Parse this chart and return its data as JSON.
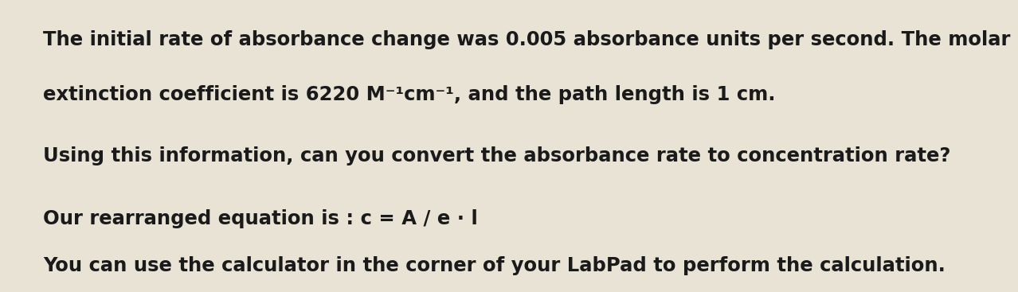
{
  "background_color": "#e8e3d5",
  "sidebar_color": "#5a5a5a",
  "teal_color": "#1a7070",
  "text_color": "#1a1a1a",
  "line1": "The initial rate of absorbance change was 0.005 absorbance units per second. The molar",
  "line2": "extinction coefficient is 6220 M⁻¹cm⁻¹, and the path length is 1 cm.",
  "line3": "Using this information, can you convert the absorbance rate to concentration rate?",
  "line4": "Our rearranged equation is : c = A / e · l",
  "line5": "You can use the calculator in the corner of your LabPad to perform the calculation.",
  "figwidth": 12.0,
  "figheight": 3.47,
  "font_size": 17.5
}
